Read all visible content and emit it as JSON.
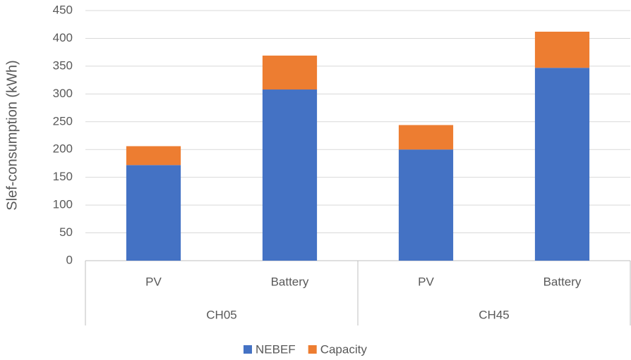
{
  "chart_data": {
    "type": "stacked-bar",
    "y_label": "Slef-consumption (kWh)",
    "groups": [
      {
        "name": "CH05",
        "categories": [
          "PV",
          "Battery"
        ]
      },
      {
        "name": "CH45",
        "categories": [
          "PV",
          "Battery"
        ]
      }
    ],
    "series": [
      {
        "name": "NEBEF",
        "color": "#4472c4",
        "values": [
          172,
          308,
          200,
          347
        ]
      },
      {
        "name": "Capacity",
        "color": "#ed7d31",
        "values": [
          34,
          61,
          44,
          65
        ]
      }
    ],
    "ylim": [
      0,
      450
    ],
    "yticks": [
      0,
      50,
      100,
      150,
      200,
      250,
      300,
      350,
      400,
      450
    ],
    "grid": true,
    "legend": "bottom"
  }
}
